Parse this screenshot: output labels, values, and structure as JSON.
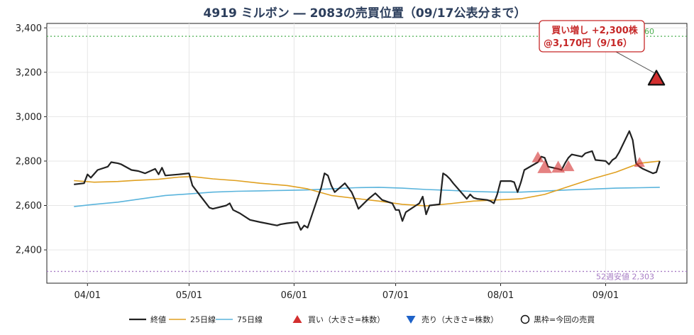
{
  "chart_data": {
    "type": "line",
    "title": "4919 ミルボン ― 2083の売買位置（09/17公表分まで）",
    "ylim": [
      2250,
      3420
    ],
    "yticks": [
      2400,
      2600,
      2800,
      3000,
      3200,
      3400
    ],
    "ytick_labels": [
      "2,400",
      "2,600",
      "2,800",
      "3,000",
      "3,200",
      "3,400"
    ],
    "xlim": [
      "2025-03-20",
      "2025-09-25"
    ],
    "xticks": [
      "2025-04-01",
      "2025-05-01",
      "2025-06-01",
      "2025-07-01",
      "2025-08-01",
      "2025-09-01"
    ],
    "xtick_labels": [
      "04/01",
      "05/01",
      "06/01",
      "07/01",
      "08/01",
      "09/01"
    ],
    "grid": true,
    "legend_placement": "bottom",
    "colors": {
      "close": "#222222",
      "ma25": "#e0a020",
      "ma75": "#5ab4dc",
      "buy": "#d32f2f",
      "sell": "#1e62c8",
      "high_line": "#4caf50",
      "low_line": "#a77cc4"
    },
    "legend": [
      {
        "key": "close",
        "label": "終値",
        "kind": "line"
      },
      {
        "key": "ma25",
        "label": "25日線",
        "kind": "line"
      },
      {
        "key": "ma75",
        "label": "75日線",
        "kind": "line"
      },
      {
        "key": "buy",
        "label": "買い（大きさ=株数）",
        "kind": "tri-up"
      },
      {
        "key": "sell",
        "label": "売り（大きさ=株数）",
        "kind": "tri-down"
      },
      {
        "key": "current",
        "label": "黒枠=今回の売買",
        "kind": "circle"
      }
    ],
    "reference_lines": [
      {
        "key": "high_line",
        "value": 3362,
        "label": "60"
      },
      {
        "key": "low_line",
        "value": 2303,
        "label": "52週安値 2,303"
      }
    ],
    "series": [
      {
        "name": "終値",
        "key": "close",
        "points": [
          [
            "2025-03-28",
            2695
          ],
          [
            "2025-03-31",
            2700
          ],
          [
            "2025-04-01",
            2740
          ],
          [
            "2025-04-02",
            2725
          ],
          [
            "2025-04-04",
            2760
          ],
          [
            "2025-04-07",
            2775
          ],
          [
            "2025-04-08",
            2795
          ],
          [
            "2025-04-10",
            2790
          ],
          [
            "2025-04-11",
            2785
          ],
          [
            "2025-04-14",
            2760
          ],
          [
            "2025-04-16",
            2755
          ],
          [
            "2025-04-18",
            2745
          ],
          [
            "2025-04-21",
            2765
          ],
          [
            "2025-04-22",
            2740
          ],
          [
            "2025-04-23",
            2770
          ],
          [
            "2025-04-24",
            2735
          ],
          [
            "2025-04-28",
            2740
          ],
          [
            "2025-05-01",
            2745
          ],
          [
            "2025-05-02",
            2690
          ],
          [
            "2025-05-07",
            2590
          ],
          [
            "2025-05-08",
            2585
          ],
          [
            "2025-05-12",
            2600
          ],
          [
            "2025-05-13",
            2610
          ],
          [
            "2025-05-14",
            2580
          ],
          [
            "2025-05-16",
            2565
          ],
          [
            "2025-05-19",
            2535
          ],
          [
            "2025-05-22",
            2525
          ],
          [
            "2025-05-27",
            2510
          ],
          [
            "2025-05-28",
            2515
          ],
          [
            "2025-05-30",
            2520
          ],
          [
            "2025-06-02",
            2525
          ],
          [
            "2025-06-03",
            2490
          ],
          [
            "2025-06-04",
            2510
          ],
          [
            "2025-06-05",
            2500
          ],
          [
            "2025-06-06",
            2545
          ],
          [
            "2025-06-09",
            2680
          ],
          [
            "2025-06-10",
            2745
          ],
          [
            "2025-06-11",
            2735
          ],
          [
            "2025-06-12",
            2690
          ],
          [
            "2025-06-13",
            2660
          ],
          [
            "2025-06-16",
            2700
          ],
          [
            "2025-06-18",
            2660
          ],
          [
            "2025-06-19",
            2625
          ],
          [
            "2025-06-20",
            2585
          ],
          [
            "2025-06-23",
            2630
          ],
          [
            "2025-06-25",
            2655
          ],
          [
            "2025-06-26",
            2640
          ],
          [
            "2025-06-27",
            2625
          ],
          [
            "2025-06-30",
            2610
          ],
          [
            "2025-07-01",
            2580
          ],
          [
            "2025-07-02",
            2580
          ],
          [
            "2025-07-03",
            2530
          ],
          [
            "2025-07-04",
            2570
          ],
          [
            "2025-07-07",
            2600
          ],
          [
            "2025-07-08",
            2610
          ],
          [
            "2025-07-09",
            2640
          ],
          [
            "2025-07-10",
            2560
          ],
          [
            "2025-07-11",
            2600
          ],
          [
            "2025-07-14",
            2605
          ],
          [
            "2025-07-15",
            2745
          ],
          [
            "2025-07-16",
            2735
          ],
          [
            "2025-07-17",
            2720
          ],
          [
            "2025-07-18",
            2700
          ],
          [
            "2025-07-22",
            2630
          ],
          [
            "2025-07-23",
            2650
          ],
          [
            "2025-07-24",
            2635
          ],
          [
            "2025-07-25",
            2630
          ],
          [
            "2025-07-28",
            2625
          ],
          [
            "2025-07-29",
            2620
          ],
          [
            "2025-07-30",
            2610
          ],
          [
            "2025-07-31",
            2650
          ],
          [
            "2025-08-01",
            2710
          ],
          [
            "2025-08-04",
            2710
          ],
          [
            "2025-08-05",
            2705
          ],
          [
            "2025-08-06",
            2660
          ],
          [
            "2025-08-07",
            2705
          ],
          [
            "2025-08-08",
            2760
          ],
          [
            "2025-08-12",
            2795
          ],
          [
            "2025-08-13",
            2820
          ],
          [
            "2025-08-14",
            2815
          ],
          [
            "2025-08-15",
            2775
          ],
          [
            "2025-08-18",
            2765
          ],
          [
            "2025-08-19",
            2760
          ],
          [
            "2025-08-20",
            2790
          ],
          [
            "2025-08-21",
            2815
          ],
          [
            "2025-08-22",
            2830
          ],
          [
            "2025-08-25",
            2820
          ],
          [
            "2025-08-26",
            2835
          ],
          [
            "2025-08-27",
            2840
          ],
          [
            "2025-08-28",
            2845
          ],
          [
            "2025-08-29",
            2805
          ],
          [
            "2025-09-01",
            2800
          ],
          [
            "2025-09-02",
            2785
          ],
          [
            "2025-09-03",
            2805
          ],
          [
            "2025-09-04",
            2815
          ],
          [
            "2025-09-05",
            2840
          ],
          [
            "2025-09-08",
            2935
          ],
          [
            "2025-09-09",
            2895
          ],
          [
            "2025-09-10",
            2790
          ],
          [
            "2025-09-11",
            2775
          ],
          [
            "2025-09-12",
            2765
          ],
          [
            "2025-09-15",
            2745
          ],
          [
            "2025-09-16",
            2750
          ],
          [
            "2025-09-17",
            2800
          ]
        ]
      },
      {
        "name": "25日線",
        "key": "ma25",
        "points": [
          [
            "2025-03-28",
            2712
          ],
          [
            "2025-04-03",
            2705
          ],
          [
            "2025-04-10",
            2708
          ],
          [
            "2025-04-15",
            2713
          ],
          [
            "2025-04-22",
            2718
          ],
          [
            "2025-04-28",
            2728
          ],
          [
            "2025-05-02",
            2730
          ],
          [
            "2025-05-08",
            2720
          ],
          [
            "2025-05-15",
            2712
          ],
          [
            "2025-05-22",
            2700
          ],
          [
            "2025-05-30",
            2690
          ],
          [
            "2025-06-05",
            2675
          ],
          [
            "2025-06-12",
            2645
          ],
          [
            "2025-06-19",
            2632
          ],
          [
            "2025-06-26",
            2620
          ],
          [
            "2025-07-03",
            2605
          ],
          [
            "2025-07-10",
            2598
          ],
          [
            "2025-07-17",
            2608
          ],
          [
            "2025-07-24",
            2620
          ],
          [
            "2025-07-31",
            2625
          ],
          [
            "2025-08-07",
            2630
          ],
          [
            "2025-08-14",
            2650
          ],
          [
            "2025-08-21",
            2685
          ],
          [
            "2025-08-28",
            2720
          ],
          [
            "2025-09-04",
            2750
          ],
          [
            "2025-09-11",
            2790
          ],
          [
            "2025-09-17",
            2800
          ]
        ]
      },
      {
        "name": "75日線",
        "key": "ma75",
        "points": [
          [
            "2025-03-28",
            2595
          ],
          [
            "2025-04-03",
            2605
          ],
          [
            "2025-04-10",
            2615
          ],
          [
            "2025-04-17",
            2630
          ],
          [
            "2025-04-24",
            2645
          ],
          [
            "2025-05-01",
            2652
          ],
          [
            "2025-05-08",
            2660
          ],
          [
            "2025-05-15",
            2664
          ],
          [
            "2025-05-22",
            2666
          ],
          [
            "2025-05-30",
            2668
          ],
          [
            "2025-06-05",
            2670
          ],
          [
            "2025-06-12",
            2675
          ],
          [
            "2025-06-19",
            2680
          ],
          [
            "2025-06-26",
            2682
          ],
          [
            "2025-07-03",
            2678
          ],
          [
            "2025-07-10",
            2672
          ],
          [
            "2025-07-17",
            2668
          ],
          [
            "2025-07-24",
            2663
          ],
          [
            "2025-07-31",
            2660
          ],
          [
            "2025-08-07",
            2660
          ],
          [
            "2025-08-14",
            2665
          ],
          [
            "2025-08-21",
            2670
          ],
          [
            "2025-08-28",
            2674
          ],
          [
            "2025-09-04",
            2678
          ],
          [
            "2025-09-11",
            2680
          ],
          [
            "2025-09-17",
            2682
          ]
        ]
      }
    ],
    "trades": [
      {
        "side": "buy",
        "date": "2025-08-12",
        "price": 2815,
        "size": 1.0,
        "current": false
      },
      {
        "side": "buy",
        "date": "2025-08-14",
        "price": 2770,
        "size": 1.2,
        "current": false
      },
      {
        "side": "buy",
        "date": "2025-08-18",
        "price": 2770,
        "size": 1.1,
        "current": false
      },
      {
        "side": "buy",
        "date": "2025-08-21",
        "price": 2775,
        "size": 1.0,
        "current": false
      },
      {
        "side": "buy",
        "date": "2025-09-11",
        "price": 2792,
        "size": 0.9,
        "current": false
      },
      {
        "side": "buy",
        "date": "2025-09-16",
        "price": 3170,
        "size": 1.3,
        "current": true
      }
    ],
    "callout": {
      "line1": "買い増し +2,300株",
      "line2": "@3,170円（9/16）",
      "date": "2025-09-16",
      "price": 3170
    }
  }
}
